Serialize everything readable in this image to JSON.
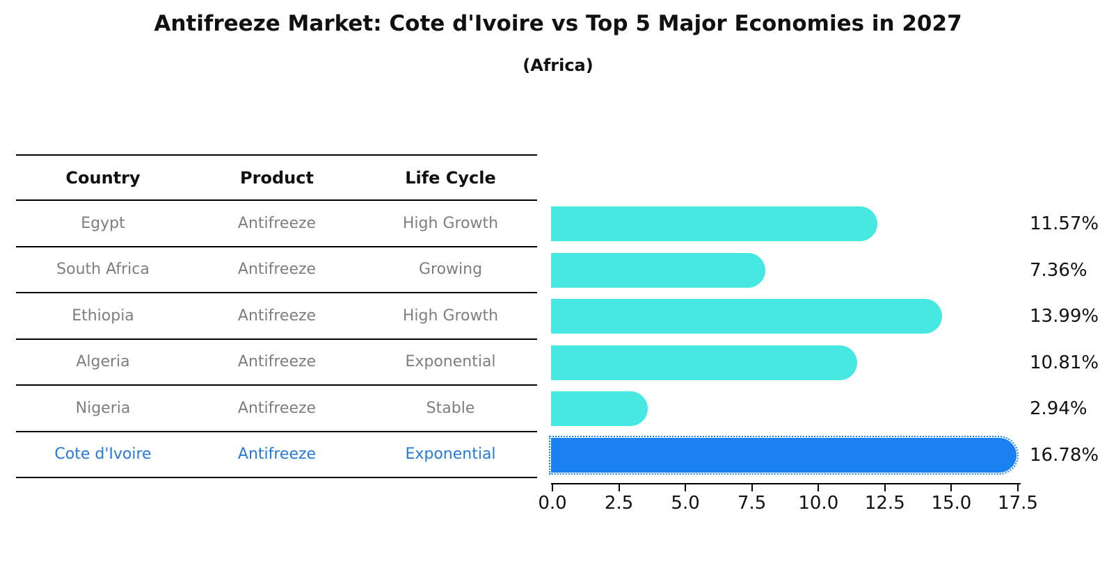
{
  "title": "Antifreeze Market: Cote d'Ivoire vs Top 5 Major Economies in 2027",
  "subtitle": "(Africa)",
  "table": {
    "headers": [
      "Country",
      "Product",
      "Life Cycle"
    ],
    "rows": [
      {
        "country": "Egypt",
        "product": "Antifreeze",
        "life_cycle": "High Growth",
        "value": 11.57,
        "label": "11.57%",
        "highlight": false
      },
      {
        "country": "South Africa",
        "product": "Antifreeze",
        "life_cycle": "Growing",
        "value": 7.36,
        "label": "7.36%",
        "highlight": false
      },
      {
        "country": "Ethiopia",
        "product": "Antifreeze",
        "life_cycle": "High Growth",
        "value": 13.99,
        "label": "13.99%",
        "highlight": false
      },
      {
        "country": "Algeria",
        "product": "Antifreeze",
        "life_cycle": "Exponential",
        "value": 10.81,
        "label": "10.81%",
        "highlight": false
      },
      {
        "country": "Nigeria",
        "product": "Antifreeze",
        "life_cycle": "Stable",
        "value": 2.94,
        "label": "2.94%",
        "highlight": false
      },
      {
        "country": "Cote d'Ivoire",
        "product": "Antifreeze",
        "life_cycle": "Exponential",
        "value": 16.78,
        "label": "16.78%",
        "highlight": true
      }
    ]
  },
  "chart_data": {
    "type": "bar",
    "orientation": "horizontal",
    "title": "Antifreeze Market: Cote d'Ivoire vs Top 5 Major Economies in 2027",
    "subtitle": "(Africa)",
    "categories": [
      "Egypt",
      "South Africa",
      "Ethiopia",
      "Algeria",
      "Nigeria",
      "Cote d'Ivoire"
    ],
    "values": [
      11.57,
      7.36,
      13.99,
      10.81,
      2.94,
      16.78
    ],
    "value_labels": [
      "11.57%",
      "7.36%",
      "13.99%",
      "10.81%",
      "2.94%",
      "16.78%"
    ],
    "xlim": [
      0,
      17.5
    ],
    "x_ticks": [
      "0.0",
      "2.5",
      "5.0",
      "7.5",
      "10.0",
      "12.5",
      "15.0",
      "17.5"
    ],
    "grid": false,
    "legend": false,
    "highlight_category": "Cote d'Ivoire"
  },
  "colors": {
    "bar": "#47e8e2",
    "highlight_bar": "#1b81f0",
    "highlight_text": "#2979d2",
    "row_text": "#7e7e7e",
    "text": "#111111"
  }
}
